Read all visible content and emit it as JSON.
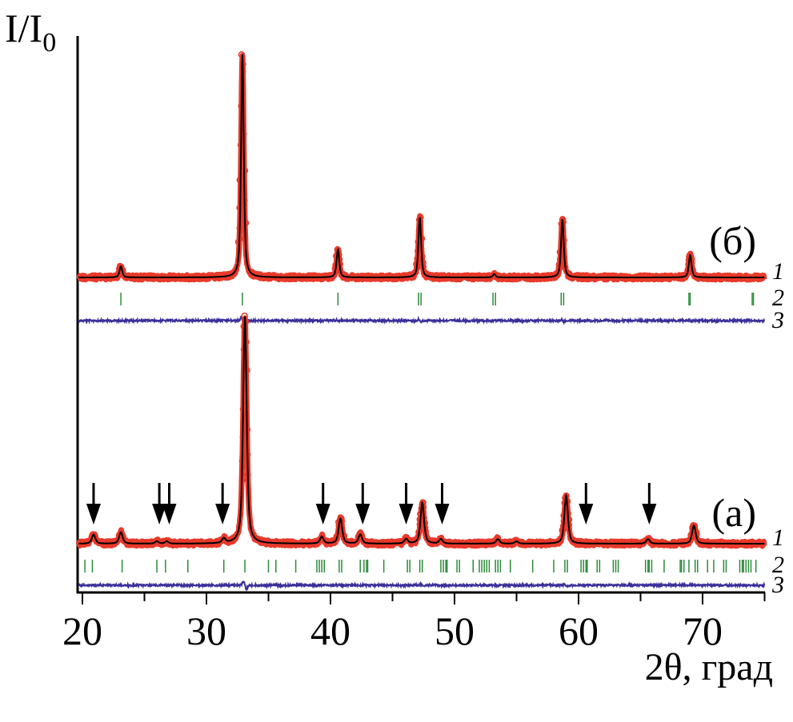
{
  "chart_data": {
    "type": "line",
    "title": "",
    "ylabel": "I/I",
    "ylabel_sub": "0",
    "xlabel": "2θ, град",
    "xlim": [
      19.6,
      75
    ],
    "x_ticks": [
      20,
      30,
      40,
      50,
      60,
      70
    ],
    "x_tick_labels": [
      "20",
      "30",
      "40",
      "50",
      "60",
      "70"
    ],
    "x_minor_ticks": [
      25,
      35,
      45,
      55,
      65,
      75
    ],
    "grid": false,
    "legend": "right, per pattern",
    "series_labels": [
      "1",
      "2",
      "3"
    ],
    "colors": {
      "observed": "#e8392a",
      "calculated": "#000000",
      "bragg": "#2e8b3a",
      "difference": "#3b2f9a",
      "arrow": "#000000"
    },
    "patterns": [
      {
        "label": "(б)",
        "intensity_units": "relative, % of max",
        "peaks": [
          {
            "two_theta": 23.1,
            "intensity": 5
          },
          {
            "two_theta": 32.9,
            "intensity": 100
          },
          {
            "two_theta": 40.6,
            "intensity": 12.5
          },
          {
            "two_theta": 47.2,
            "intensity": 27
          },
          {
            "two_theta": 53.2,
            "intensity": 1.5
          },
          {
            "two_theta": 58.7,
            "intensity": 26
          },
          {
            "two_theta": 69.0,
            "intensity": 10
          }
        ],
        "bragg_positions": [
          23.1,
          32.9,
          40.6,
          47.1,
          47.3,
          53.1,
          53.3,
          58.6,
          58.8,
          68.9,
          69.0,
          74.0,
          74.1
        ]
      },
      {
        "label": "(a)",
        "intensity_units": "relative, % of max",
        "peaks": [
          {
            "two_theta": 20.9,
            "intensity": 4
          },
          {
            "two_theta": 23.1,
            "intensity": 5
          },
          {
            "two_theta": 26.0,
            "intensity": 1
          },
          {
            "two_theta": 26.8,
            "intensity": 1
          },
          {
            "two_theta": 31.4,
            "intensity": 2
          },
          {
            "two_theta": 33.1,
            "intensity": 100
          },
          {
            "two_theta": 39.3,
            "intensity": 3
          },
          {
            "two_theta": 40.8,
            "intensity": 11
          },
          {
            "two_theta": 42.4,
            "intensity": 4
          },
          {
            "two_theta": 46.1,
            "intensity": 2
          },
          {
            "two_theta": 47.4,
            "intensity": 18
          },
          {
            "two_theta": 48.9,
            "intensity": 2
          },
          {
            "two_theta": 53.5,
            "intensity": 2
          },
          {
            "two_theta": 55.0,
            "intensity": 1
          },
          {
            "two_theta": 59.0,
            "intensity": 21
          },
          {
            "two_theta": 65.6,
            "intensity": 2
          },
          {
            "two_theta": 69.3,
            "intensity": 8
          }
        ],
        "bragg_positions": [
          20.2,
          20.8,
          23.2,
          26.0,
          26.7,
          28.5,
          31.4,
          33.1,
          35.0,
          35.6,
          37.2,
          38.9,
          39.1,
          39.3,
          39.5,
          40.7,
          40.9,
          42.4,
          42.7,
          42.9,
          43.0,
          44.3,
          46.2,
          46.4,
          47.2,
          47.4,
          48.9,
          49.1,
          49.3,
          49.4,
          50.2,
          50.4,
          51.5,
          52.0,
          52.2,
          52.4,
          52.6,
          52.8,
          53.3,
          53.5,
          53.7,
          54.5,
          56.3,
          58.0,
          58.9,
          59.1,
          60.2,
          60.4,
          60.6,
          60.7,
          61.5,
          61.7,
          62.8,
          63.0,
          63.2,
          65.4,
          65.6,
          65.7,
          65.9,
          66.9,
          68.2,
          68.3,
          68.5,
          68.9,
          69.4,
          69.6,
          70.4,
          70.9,
          71.7,
          71.9,
          73.0,
          73.2,
          73.3,
          73.5,
          73.7,
          73.9,
          74.3
        ],
        "impurity_arrows": [
          20.9,
          26.2,
          27.0,
          31.3,
          39.4,
          42.6,
          46.1,
          49.0,
          60.6,
          65.7
        ]
      }
    ]
  }
}
